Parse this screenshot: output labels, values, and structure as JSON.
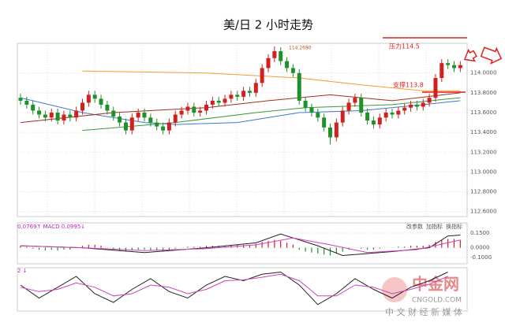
{
  "chart_data": [
    {
      "type": "candlestick",
      "title": "美/日 2 小时走势",
      "high_label": "114.2690",
      "resistance_label": "压力114.5",
      "support_label": "支撑113.8",
      "up_color": "#d02020",
      "down_color": "#20902a",
      "grid": true,
      "ylim": [
        112.55,
        114.3
      ],
      "yticks": [
        {
          "value": 114,
          "label": "114.0000"
        },
        {
          "value": 113.8,
          "label": "113.8000"
        },
        {
          "value": 113.6,
          "label": "113.6000"
        },
        {
          "value": 113.4,
          "label": "113.4000"
        },
        {
          "value": 113.2,
          "label": "113.2000"
        },
        {
          "value": 113,
          "label": "113.0000"
        },
        {
          "value": 112.8,
          "label": "112.8000"
        },
        {
          "value": 112.6,
          "label": "112.6000"
        }
      ],
      "open": [
        113.75,
        113.72,
        113.68,
        113.62,
        113.58,
        113.55,
        113.6,
        113.52,
        113.58,
        113.55,
        113.62,
        113.7,
        113.78,
        113.74,
        113.68,
        113.62,
        113.56,
        113.5,
        113.42,
        113.55,
        113.6,
        113.55,
        113.5,
        113.46,
        113.42,
        113.5,
        113.58,
        113.62,
        113.66,
        113.6,
        113.62,
        113.68,
        113.72,
        113.7,
        113.74,
        113.78,
        113.76,
        113.82,
        113.8,
        113.9,
        114.05,
        114.15,
        114.22,
        114.12,
        114.05,
        114.0,
        113.72,
        113.65,
        113.6,
        113.55,
        113.45,
        113.35,
        113.5,
        113.62,
        113.7,
        113.75,
        113.6,
        113.52,
        113.48,
        113.55,
        113.6,
        113.58,
        113.62,
        113.65,
        113.68,
        113.66,
        113.7,
        113.75,
        113.95,
        114.1,
        114.08,
        114.05
      ],
      "high": [
        113.79,
        113.76,
        113.72,
        113.66,
        113.62,
        113.64,
        113.64,
        113.62,
        113.62,
        113.66,
        113.74,
        113.82,
        113.82,
        113.78,
        113.72,
        113.66,
        113.6,
        113.54,
        113.59,
        113.64,
        113.64,
        113.59,
        113.54,
        113.5,
        113.54,
        113.62,
        113.66,
        113.7,
        113.7,
        113.66,
        113.72,
        113.76,
        113.76,
        113.78,
        113.82,
        113.82,
        113.86,
        113.86,
        113.94,
        114.09,
        114.19,
        114.269,
        114.26,
        114.16,
        114.09,
        114.04,
        113.76,
        113.69,
        113.64,
        113.59,
        113.49,
        113.54,
        113.66,
        113.74,
        113.79,
        113.79,
        113.64,
        113.56,
        113.59,
        113.64,
        113.64,
        113.66,
        113.69,
        113.72,
        113.72,
        113.74,
        113.79,
        113.99,
        114.14,
        114.14,
        114.12,
        114.12
      ],
      "low": [
        113.68,
        113.64,
        113.58,
        113.54,
        113.51,
        113.51,
        113.48,
        113.48,
        113.51,
        113.51,
        113.58,
        113.66,
        113.7,
        113.64,
        113.58,
        113.52,
        113.46,
        113.38,
        113.38,
        113.51,
        113.51,
        113.46,
        113.42,
        113.38,
        113.38,
        113.46,
        113.54,
        113.58,
        113.56,
        113.56,
        113.58,
        113.64,
        113.66,
        113.66,
        113.7,
        113.72,
        113.72,
        113.76,
        113.76,
        113.86,
        114.01,
        114.11,
        114.08,
        114.01,
        113.96,
        113.68,
        113.61,
        113.56,
        113.51,
        113.41,
        113.28,
        113.31,
        113.46,
        113.58,
        113.66,
        113.56,
        113.48,
        113.44,
        113.44,
        113.51,
        113.54,
        113.54,
        113.58,
        113.61,
        113.62,
        113.62,
        113.66,
        113.71,
        113.91,
        114.04,
        114.01,
        114.01
      ],
      "close": [
        113.72,
        113.68,
        113.62,
        113.58,
        113.55,
        113.6,
        113.52,
        113.58,
        113.55,
        113.62,
        113.7,
        113.78,
        113.74,
        113.68,
        113.62,
        113.56,
        113.5,
        113.42,
        113.55,
        113.6,
        113.55,
        113.5,
        113.46,
        113.42,
        113.5,
        113.58,
        113.62,
        113.66,
        113.6,
        113.62,
        113.68,
        113.72,
        113.7,
        113.74,
        113.78,
        113.76,
        113.82,
        113.8,
        113.9,
        114.05,
        114.15,
        114.22,
        114.12,
        114.05,
        114.0,
        113.72,
        113.65,
        113.6,
        113.55,
        113.45,
        113.35,
        113.5,
        113.62,
        113.7,
        113.75,
        113.6,
        113.52,
        113.48,
        113.55,
        113.6,
        113.58,
        113.62,
        113.65,
        113.68,
        113.66,
        113.7,
        113.75,
        113.95,
        114.1,
        114.08,
        114.05,
        114.08
      ],
      "lines": [
        {
          "color": "#f0a030",
          "x": [
            10,
            30,
            45,
            55,
            65,
            71
          ],
          "values": [
            114.02,
            114.0,
            113.95,
            113.88,
            113.82,
            113.82
          ]
        },
        {
          "color": "#3a7ad0",
          "x": [
            0,
            10,
            20,
            25,
            35,
            45,
            55,
            65,
            71
          ],
          "values": [
            113.75,
            113.6,
            113.5,
            113.48,
            113.5,
            113.6,
            113.62,
            113.68,
            113.72
          ]
        },
        {
          "color": "#3a9a3a",
          "x": [
            10,
            25,
            38,
            46,
            60,
            71
          ],
          "values": [
            113.42,
            113.5,
            113.6,
            113.65,
            113.68,
            113.75
          ]
        },
        {
          "color": "#a03020",
          "x": [
            0,
            15,
            30,
            40,
            50,
            60,
            71
          ],
          "values": [
            113.5,
            113.6,
            113.65,
            113.72,
            113.78,
            113.72,
            113.8
          ]
        }
      ]
    },
    {
      "type": "macd",
      "header": "0.0769↑ MACD 0.0995↓",
      "buttons": [
        "改参数",
        "加指标",
        "换指标"
      ],
      "ylim": [
        -0.165,
        0.255
      ],
      "yticks": [
        {
          "value": 0.15,
          "label": "0.1500"
        },
        {
          "value": 0,
          "label": "0.0000"
        },
        {
          "value": -0.1,
          "label": "-0.1000"
        }
      ],
      "up_color": "#d02020",
      "down_color": "#20902a",
      "values": [
        0.02,
        0.01,
        -0.01,
        -0.02,
        -0.03,
        -0.02,
        -0.03,
        -0.02,
        -0.02,
        0.0,
        0.02,
        0.03,
        0.03,
        0.02,
        0.0,
        -0.02,
        -0.03,
        -0.04,
        -0.03,
        -0.02,
        -0.02,
        -0.03,
        -0.03,
        -0.04,
        -0.03,
        -0.01,
        0.0,
        0.01,
        0.01,
        0.01,
        0.02,
        0.02,
        0.02,
        0.02,
        0.03,
        0.03,
        0.03,
        0.03,
        0.04,
        0.06,
        0.07,
        0.08,
        0.07,
        0.05,
        0.03,
        -0.02,
        -0.04,
        -0.05,
        -0.06,
        -0.07,
        -0.08,
        -0.06,
        -0.04,
        -0.02,
        0.0,
        -0.01,
        -0.02,
        -0.02,
        -0.01,
        0.0,
        0.0,
        0.01,
        0.01,
        0.02,
        0.02,
        0.02,
        0.03,
        0.06,
        0.08,
        0.09,
        0.09,
        0.08
      ],
      "lines": [
        {
          "color": "#222222",
          "x": [
            0,
            10,
            20,
            30,
            38,
            42,
            48,
            52,
            60,
            66,
            69,
            71
          ],
          "values": [
            0.02,
            0.0,
            -0.05,
            0.0,
            0.05,
            0.14,
            0.02,
            -0.08,
            -0.04,
            0.0,
            0.12,
            0.13
          ]
        },
        {
          "color": "#d040c0",
          "x": [
            0,
            10,
            20,
            30,
            38,
            44,
            50,
            56,
            64,
            71
          ],
          "values": [
            0.02,
            0.0,
            -0.03,
            -0.01,
            0.03,
            0.1,
            0.03,
            -0.05,
            -0.02,
            0.08
          ]
        }
      ]
    },
    {
      "type": "oscillator",
      "header": "2 ↓",
      "ylim": [
        0,
        100
      ],
      "watermark": {
        "brand": "中金网",
        "site": "CNGOLD.COM",
        "slogan": "中 文 财 经 新 媒 体"
      },
      "lines": [
        {
          "color": "#222222",
          "x": [
            0,
            3,
            6,
            9,
            12,
            15,
            18,
            21,
            24,
            27,
            30,
            33,
            36,
            39,
            42,
            45,
            48,
            51,
            54,
            57,
            60,
            63,
            66,
            69
          ],
          "values": [
            60,
            30,
            55,
            80,
            40,
            20,
            50,
            75,
            45,
            30,
            60,
            80,
            70,
            85,
            90,
            60,
            15,
            40,
            75,
            50,
            30,
            55,
            70,
            90
          ]
        },
        {
          "color": "#d040c0",
          "x": [
            0,
            3,
            6,
            9,
            12,
            15,
            18,
            21,
            24,
            27,
            30,
            33,
            36,
            39,
            42,
            45,
            48,
            51,
            54,
            57,
            60,
            63,
            66,
            69
          ],
          "values": [
            55,
            45,
            50,
            65,
            55,
            35,
            40,
            60,
            55,
            40,
            50,
            70,
            72,
            78,
            85,
            70,
            35,
            35,
            60,
            55,
            40,
            50,
            62,
            80
          ]
        }
      ]
    }
  ]
}
